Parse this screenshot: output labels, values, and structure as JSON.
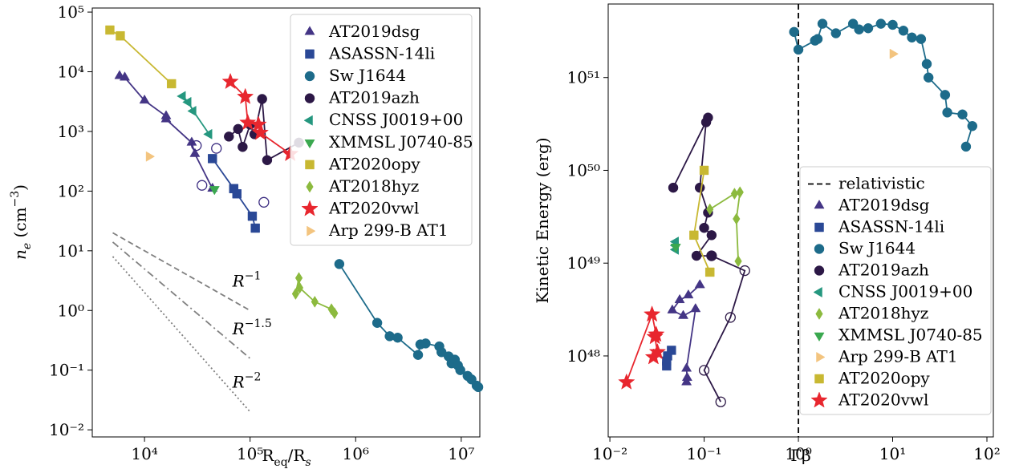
{
  "chart_data": [
    {
      "type": "scatter",
      "xscale": "log",
      "yscale": "log",
      "xlim": [
        3200,
        15000000
      ],
      "ylim": [
        0.0076,
        117000
      ],
      "xticks": [
        {
          "value": 10000,
          "label": "10⁴"
        },
        {
          "value": 100000,
          "label": "10⁵"
        },
        {
          "value": 1000000,
          "label": "10⁶"
        },
        {
          "value": 10000000,
          "label": "10⁷"
        }
      ],
      "yticks": [
        {
          "value": 0.01,
          "label": "10⁻²"
        },
        {
          "value": 0.1,
          "label": "10⁻¹"
        },
        {
          "value": 1,
          "label": "10⁰"
        },
        {
          "value": 10,
          "label": "10¹"
        },
        {
          "value": 100,
          "label": "10²"
        },
        {
          "value": 1000,
          "label": "10³"
        },
        {
          "value": 10000,
          "label": "10⁴"
        },
        {
          "value": 100000,
          "label": "10⁵"
        }
      ],
      "xlabel": [
        {
          "text": "R"
        },
        {
          "text": "eq",
          "sub": true
        },
        {
          "text": "/R"
        },
        {
          "text": "s",
          "sub": true,
          "italic": true
        }
      ],
      "ylabel": [
        {
          "text": "n",
          "italic": true
        },
        {
          "text": "e",
          "sub": true,
          "italic": true
        },
        {
          "text": " (cm"
        },
        {
          "text": "−3",
          "sup": true
        },
        {
          "text": ")"
        }
      ],
      "legend": "upper right",
      "reference_lines": [
        {
          "x": [
            5000,
            100000
          ],
          "values": [
            20,
            1
          ],
          "style": "dashed",
          "color": "#808080",
          "label": [
            {
              "text": "R",
              "italic": true
            },
            {
              "text": "−1",
              "sup": true
            }
          ]
        },
        {
          "x": [
            5000,
            100000
          ],
          "values": [
            14,
            0.157
          ],
          "style": "dashdot",
          "color": "#808080",
          "label": [
            {
              "text": "R",
              "italic": true
            },
            {
              "text": "−1.5",
              "sup": true
            }
          ]
        },
        {
          "x": [
            5000,
            100000
          ],
          "values": [
            8,
            0.02
          ],
          "style": "dotted",
          "color": "#808080",
          "label": [
            {
              "text": "R",
              "italic": true
            },
            {
              "text": "−2",
              "sup": true
            }
          ]
        }
      ],
      "series": [
        {
          "name": "AT2019dsg",
          "color": "#443585",
          "marker": "triangle-up",
          "line": true,
          "x": [
            5800,
            6500,
            10000,
            16000,
            16000,
            28000,
            30000,
            44000
          ],
          "values": [
            8500,
            8000,
            3300,
            1800,
            1600,
            650,
            420,
            110
          ]
        },
        {
          "name": "ASASSN-14li",
          "color": "#2a4896",
          "marker": "square",
          "line": true,
          "x": [
            44000,
            70000,
            75000,
            105000,
            112000
          ],
          "values": [
            350,
            110,
            90,
            38,
            24
          ]
        },
        {
          "name": "Sw J1644",
          "color": "#1d6b8a",
          "marker": "circle",
          "line": true,
          "x": [
            700000,
            1600000,
            2100000,
            2500000,
            3900000,
            4100000,
            4600000,
            6200000,
            6500000,
            7600000,
            8100000,
            8700000,
            9300000,
            9800000,
            11500000,
            12500000,
            14000000,
            14500000
          ],
          "values": [
            6,
            0.62,
            0.37,
            0.35,
            0.18,
            0.27,
            0.28,
            0.25,
            0.2,
            0.17,
            0.13,
            0.15,
            0.12,
            0.1,
            0.08,
            0.07,
            0.055,
            0.052
          ]
        },
        {
          "name": "AT2019azh",
          "color": "#2c1846",
          "marker": "circle",
          "line": true,
          "x": [
            63000,
            77000,
            85000,
            100000,
            110000,
            130000,
            145000,
            290000
          ],
          "values": [
            820,
            1100,
            550,
            1300,
            900,
            3500,
            330,
            650
          ]
        },
        {
          "name": "CNSS J0019+00",
          "color": "#25977f",
          "marker": "triangle-left",
          "line": true,
          "x": [
            23000,
            26000,
            29000,
            41000
          ],
          "values": [
            3900,
            3100,
            2200,
            900
          ]
        },
        {
          "name": "XMMSL J0740-85",
          "color": "#3aa84f",
          "marker": "triangle-down",
          "line": false,
          "x": [
            46000
          ],
          "values": [
            108
          ]
        },
        {
          "name": "AT2020opy",
          "color": "#c8b832",
          "marker": "square",
          "line": true,
          "x": [
            4700,
            5900,
            18000
          ],
          "values": [
            50000,
            40000,
            6300
          ]
        },
        {
          "name": "AT2018hyz",
          "color": "#8cba3e",
          "marker": "diamond",
          "line": true,
          "x": [
            290000,
            270000,
            295000,
            410000,
            590000,
            630000
          ],
          "values": [
            3.5,
            1.9,
            2.4,
            1.4,
            1.05,
            0.9
          ]
        },
        {
          "name": "AT2020vwl",
          "color": "#e8262e",
          "marker": "star",
          "line": true,
          "x": [
            65000,
            90000,
            95000,
            120000,
            125000,
            240000
          ],
          "values": [
            6800,
            3800,
            1400,
            1300,
            950,
            420
          ]
        },
        {
          "name": "Arp 299-B AT1",
          "color": "#f3c47f",
          "marker": "triangle-right",
          "line": false,
          "x": [
            11000
          ],
          "values": [
            380
          ]
        },
        {
          "color": "#3a2b80",
          "marker": "circle",
          "filled": false,
          "line": false,
          "x": [
            31000,
            35000,
            48000,
            135000
          ],
          "values": [
            580,
            125,
            520,
            65
          ]
        }
      ]
    },
    {
      "type": "scatter",
      "xscale": "log",
      "yscale": "log",
      "xlim": [
        0.0096,
        117
      ],
      "ylim": [
        1.34e+47,
        6.2e+51
      ],
      "xticks": [
        {
          "value": 0.01,
          "label": "10⁻²"
        },
        {
          "value": 0.1,
          "label": "10⁻¹"
        },
        {
          "value": 1,
          "label": "10⁰"
        },
        {
          "value": 10,
          "label": "10¹"
        },
        {
          "value": 100,
          "label": "10²"
        }
      ],
      "yticks": [
        {
          "value": 1e+48,
          "label": "10⁴⁸"
        },
        {
          "value": 1e+49,
          "label": "10⁴⁹"
        },
        {
          "value": 1e+50,
          "label": "10⁵⁰"
        },
        {
          "value": 1e+51,
          "label": "10⁵¹"
        }
      ],
      "xlabel": "Γβ",
      "ylabel": "Kinetic Energy (erg)",
      "legend": "lower right",
      "reference_lines": [
        {
          "name": "relativistic",
          "vline": 1,
          "style": "dashed",
          "color": "#000000"
        }
      ],
      "series": [
        {
          "name": "AT2019dsg",
          "color": "#443585",
          "marker": "triangle-up",
          "line": true,
          "x": [
            0.09,
            0.068,
            0.055,
            0.046,
            0.06,
            0.081,
            0.065,
            0.066,
            0.065
          ],
          "values": [
            5.8e+48,
            4.5e+48,
            4e+48,
            3.1e+48,
            2.7e+48,
            3.2e+48,
            7.3e+47,
            5.8e+47,
            5.2e+47
          ]
        },
        {
          "name": "ASASSN-14li",
          "color": "#2a4896",
          "marker": "square",
          "line": true,
          "x": [
            0.045,
            0.041,
            0.04,
            0.04
          ],
          "values": [
            1.15e+48,
            1e+48,
            8.8e+47,
            7.8e+47
          ]
        },
        {
          "name": "Sw J1644",
          "color": "#1d6b8a",
          "marker": "circle",
          "line": true,
          "x": [
            0.9,
            1,
            1.5,
            1.6,
            1.8,
            2.5,
            3.8,
            4.4,
            5.5,
            7.5,
            10,
            13,
            16,
            20,
            23,
            24,
            36,
            38,
            55,
            70,
            60
          ],
          "values": [
            3.1e+51,
            2e+51,
            2.5e+51,
            2.6e+51,
            3.8e+51,
            3e+51,
            3.8e+51,
            3.3e+51,
            3.4e+51,
            3.8e+51,
            3.7e+51,
            3.2e+51,
            2.7e+51,
            2.6e+51,
            1.4e+51,
            1e+51,
            6.5e+50,
            4.2e+50,
            4e+50,
            3e+50,
            1.8e+50
          ]
        },
        {
          "name": "AT2019azh",
          "color": "#2c1846",
          "marker": "circle",
          "line": true,
          "x": [
            0.047,
            0.11,
            0.105,
            0.09,
            0.11,
            0.1,
            0.12,
            0.083,
            0.12
          ],
          "values": [
            6.5e+49,
            3.7e+50,
            3.3e+50,
            6.5e+49,
            3.5e+49,
            2.4e+49,
            2e+49,
            1.2e+49,
            1.2e+49
          ]
        },
        {
          "name": "CNSS J0019+00",
          "color": "#25977f",
          "marker": "triangle-left",
          "line": true,
          "x": [
            0.05,
            0.05,
            0.05
          ],
          "values": [
            1.7e+49,
            1.55e+49,
            1.4e+49
          ]
        },
        {
          "name": "AT2018hyz",
          "color": "#8cba3e",
          "marker": "diamond",
          "line": true,
          "x": [
            0.115,
            0.21,
            0.24,
            0.22,
            0.23
          ],
          "values": [
            3.8e+49,
            5.6e+49,
            5.8e+49,
            3e+49,
            1.05e+49
          ]
        },
        {
          "name": "XMMSL J0740-85",
          "color": "#3aa84f",
          "marker": "triangle-down",
          "line": false,
          "x": [
            0.05
          ],
          "values": [
            1.5e+49
          ]
        },
        {
          "name": "Arp 299-B AT1",
          "color": "#f3c47f",
          "marker": "triangle-right",
          "line": false,
          "x": [
            10
          ],
          "values": [
            1.8e+51
          ]
        },
        {
          "name": "AT2020opy",
          "color": "#c8b832",
          "marker": "square",
          "line": true,
          "x": [
            0.1,
            0.078,
            0.115
          ],
          "values": [
            1e+50,
            2e+49,
            8e+48
          ]
        },
        {
          "name": "AT2020vwl",
          "color": "#e8262e",
          "marker": "star",
          "line": true,
          "x": [
            0.015,
            0.028,
            0.031,
            0.03,
            0.032,
            0.029
          ],
          "values": [
            5.2e+47,
            2.8e+48,
            1.7e+48,
            1.6e+48,
            1.1e+48,
            9.7e+47
          ]
        },
        {
          "color": "#2c1846",
          "marker": "circle",
          "filled": false,
          "line": true,
          "x": [
            0.12,
            0.27,
            0.19,
            0.1,
            0.15
          ],
          "values": [
            1.2e+49,
            8.3e+48,
            2.6e+48,
            7e+47,
            3.2e+47
          ]
        }
      ]
    }
  ]
}
